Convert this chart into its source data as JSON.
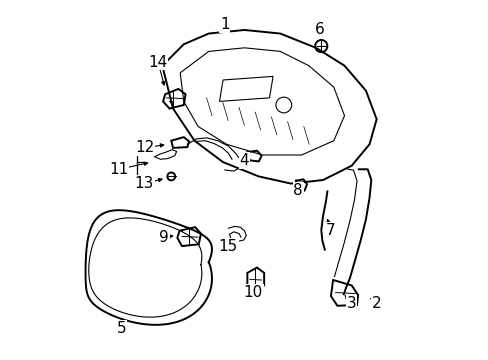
{
  "background_color": "#ffffff",
  "label_color": "#000000",
  "line_color": "#000000",
  "figsize": [
    4.89,
    3.6
  ],
  "dpi": 100,
  "font_size": 11,
  "arrows": {
    "1": [
      0.445,
      0.935,
      0.445,
      0.91
    ],
    "2": [
      0.87,
      0.155,
      0.845,
      0.175
    ],
    "3": [
      0.8,
      0.155,
      0.775,
      0.185
    ],
    "4": [
      0.5,
      0.555,
      0.52,
      0.565
    ],
    "5": [
      0.155,
      0.085,
      0.16,
      0.115
    ],
    "6": [
      0.71,
      0.92,
      0.71,
      0.895
    ],
    "7": [
      0.74,
      0.36,
      0.73,
      0.4
    ],
    "8": [
      0.65,
      0.47,
      0.655,
      0.49
    ],
    "9": [
      0.275,
      0.34,
      0.31,
      0.345
    ],
    "10": [
      0.525,
      0.185,
      0.53,
      0.21
    ],
    "11": [
      0.148,
      0.53,
      0.24,
      0.55
    ],
    "12": [
      0.22,
      0.59,
      0.285,
      0.6
    ],
    "13": [
      0.22,
      0.49,
      0.28,
      0.505
    ],
    "14": [
      0.258,
      0.83,
      0.278,
      0.755
    ],
    "15": [
      0.455,
      0.315,
      0.47,
      0.345
    ]
  }
}
